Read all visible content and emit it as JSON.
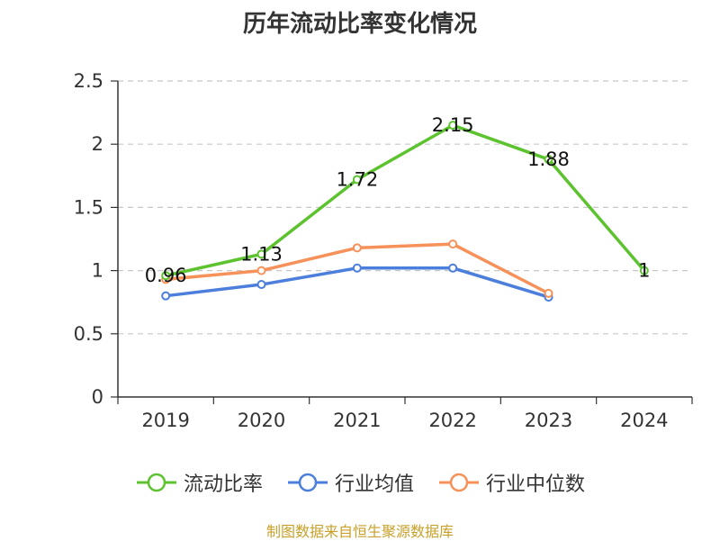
{
  "chart_data": {
    "type": "line",
    "title": "历年流动比率变化情况",
    "categories": [
      "2019",
      "2020",
      "2021",
      "2022",
      "2023",
      "2024"
    ],
    "ylim": [
      0,
      2.5
    ],
    "yticks": [
      "0",
      "0.5",
      "1",
      "1.5",
      "2",
      "2.5"
    ],
    "ytick_values": [
      0,
      0.5,
      1,
      1.5,
      2,
      2.5
    ],
    "grid": true,
    "legend_position": "bottom",
    "series": [
      {
        "name": "流动比率",
        "color": "#5cc32f",
        "values": [
          0.96,
          1.13,
          1.72,
          2.15,
          1.88,
          1
        ],
        "labels": [
          "0.96",
          "1.13",
          "1.72",
          "2.15",
          "1.88",
          "1"
        ]
      },
      {
        "name": "行业均值",
        "color": "#4c7fdc",
        "values": [
          0.8,
          0.89,
          1.02,
          1.02,
          0.79,
          null
        ]
      },
      {
        "name": "行业中位数",
        "color": "#f7915a",
        "values": [
          0.93,
          1.0,
          1.18,
          1.21,
          0.82,
          null
        ]
      }
    ]
  },
  "footer": {
    "source": "制图数据来自恒生聚源数据库"
  }
}
